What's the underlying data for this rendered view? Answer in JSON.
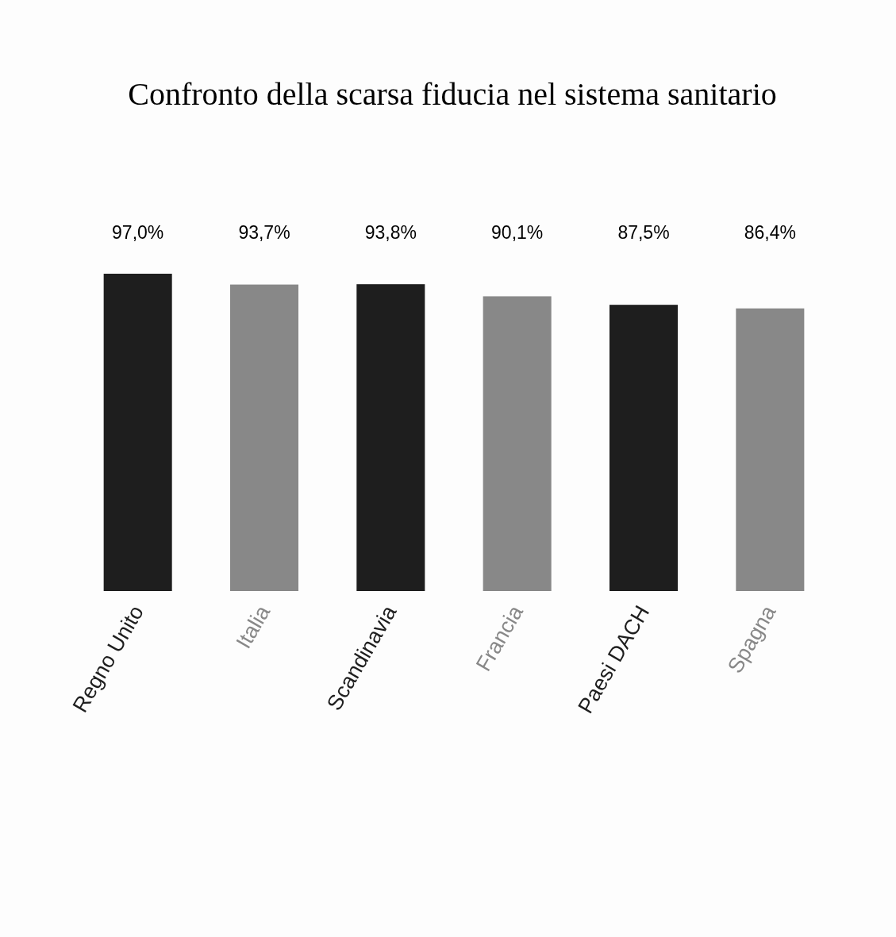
{
  "chart_data": {
    "type": "bar",
    "title": "Confronto della scarsa fiducia nel sistema sanitario",
    "categories": [
      "Regno Unito",
      "Italia",
      "Scandinavia",
      "Francia",
      "Paesi DACH",
      "Spagna"
    ],
    "values": [
      97.0,
      93.7,
      93.8,
      90.1,
      87.5,
      86.4
    ],
    "colors": [
      "#1e1e1e",
      "#888888",
      "#1e1e1e",
      "#888888",
      "#1e1e1e",
      "#888888"
    ],
    "value_labels": [
      "97,0%",
      "93,7%",
      "93,8%",
      "90,1%",
      "87,5%",
      "86,4%"
    ]
  }
}
